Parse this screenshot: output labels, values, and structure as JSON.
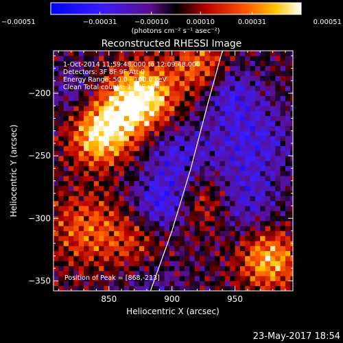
{
  "chart_data": {
    "type": "heatmap",
    "title": "Reconstructed RHESSI Image",
    "xlabel": "Heliocentric X (arcsec)",
    "ylabel": "Heliocentric Y (arcsec)",
    "xlim": [
      806,
      996
    ],
    "ylim": [
      -358,
      -166
    ],
    "x_ticks": [
      850,
      900,
      950
    ],
    "y_ticks": [
      -200,
      -250,
      -300,
      -350
    ],
    "colorbar": {
      "label": "(photons cm⁻² s⁻¹ asec⁻²)",
      "range": [
        -0.00051,
        0.00051
      ],
      "ticks": [
        "-0.00051",
        "-0.00031",
        "-0.00010",
        "0.00010",
        "0.00031",
        "0.00051"
      ]
    },
    "annotations": {
      "time_range": "1-Oct-2014 11:59:48.000 to 12:09:48.000",
      "detectors": "Detectors: 3F 8F 9F  Att 0",
      "energy": "Energy Range: 50.0 - 100.0 keV",
      "method": "Clean    Total counts: 1.20E+04",
      "peak": "Position of Peak = [868,-213]"
    },
    "limb": [
      [
        883,
        -358
      ],
      [
        900,
        -310
      ],
      [
        915,
        -260
      ],
      [
        928,
        -210
      ],
      [
        940,
        -166
      ]
    ],
    "sources": [
      {
        "x": 875,
        "y": -205,
        "value": 0.00051,
        "sigma": 18
      },
      {
        "x": 850,
        "y": -225,
        "value": 0.00035,
        "sigma": 18
      },
      {
        "x": 838,
        "y": -240,
        "value": 0.00028,
        "sigma": 15
      },
      {
        "x": 920,
        "y": -180,
        "value": 0.00028,
        "sigma": 15
      },
      {
        "x": 975,
        "y": -335,
        "value": 0.0004,
        "sigma": 16
      },
      {
        "x": 830,
        "y": -310,
        "value": 0.00025,
        "sigma": 20
      },
      {
        "x": 870,
        "y": -325,
        "value": 0.0002,
        "sigma": 18
      },
      {
        "x": 925,
        "y": -290,
        "value": 0.0002,
        "sigma": 15
      },
      {
        "x": 900,
        "y": -250,
        "value": -0.00022,
        "sigma": 18
      },
      {
        "x": 960,
        "y": -240,
        "value": -0.00025,
        "sigma": 25
      },
      {
        "x": 955,
        "y": -290,
        "value": -0.0002,
        "sigma": 18
      },
      {
        "x": 890,
        "y": -290,
        "value": -0.0003,
        "sigma": 16
      },
      {
        "x": 880,
        "y": -350,
        "value": -0.00015,
        "sigma": 20
      },
      {
        "x": 820,
        "y": -200,
        "value": -0.00015,
        "sigma": 15
      },
      {
        "x": 945,
        "y": -200,
        "value": -0.0002,
        "sigma": 15
      }
    ]
  },
  "footer": {
    "date": "23-May-2017 18:54"
  }
}
